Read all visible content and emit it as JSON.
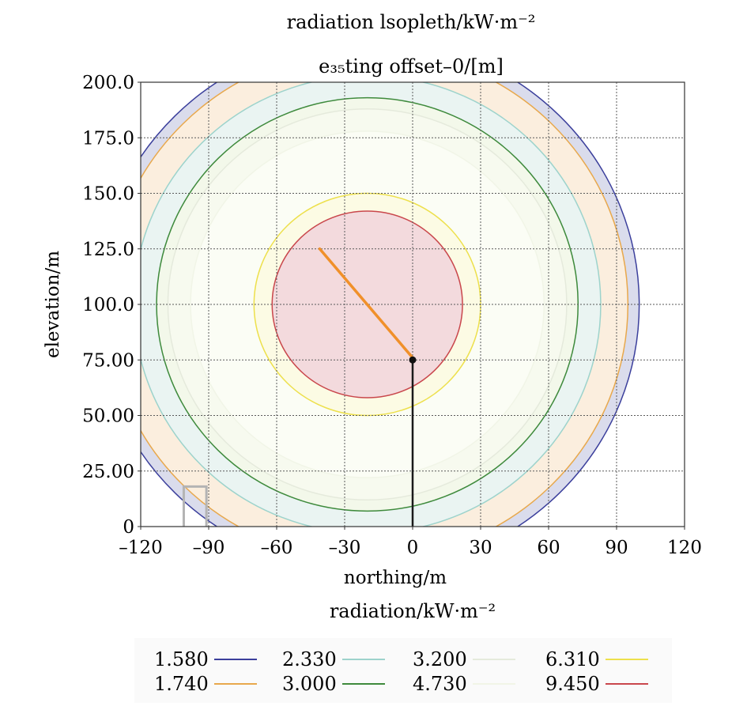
{
  "chart_data": {
    "type": "contour",
    "title": "radiation lsopleth/kW·m⁻²",
    "subtitle": "e₃₅ting offset–0/[m]",
    "xlabel": "northing/m",
    "ylabel": "elevation/m",
    "xlim": [
      -120,
      120
    ],
    "ylim": [
      0,
      200
    ],
    "xticks": [
      "–120",
      "–90",
      "–60",
      "–30",
      "0",
      "30",
      "60",
      "90",
      "120"
    ],
    "xtick_values": [
      -120,
      -90,
      -60,
      -30,
      0,
      30,
      60,
      90,
      120
    ],
    "yticks": [
      "0",
      "25.00",
      "50.00",
      "75.00",
      "100.0",
      "125.0",
      "150.0",
      "175.0",
      "200.0"
    ],
    "ytick_values": [
      0,
      25,
      50,
      75,
      100,
      125,
      150,
      175,
      200
    ],
    "grid": true,
    "legend_title": "radiation/kW·m⁻²",
    "legend_position": "bottom",
    "center": {
      "x": -20,
      "y": 100
    },
    "isopleths": [
      {
        "value": "1.580",
        "radius": 120,
        "color": "#3b3f9c",
        "fill": "#dadcec"
      },
      {
        "value": "1.740",
        "radius": 115,
        "color": "#e8a84c",
        "fill": "#fbeede"
      },
      {
        "value": "2.330",
        "radius": 103,
        "color": "#9dd3cc",
        "fill": "#eaf4f2"
      },
      {
        "value": "3.000",
        "radius": 93,
        "color": "#3e8a3c",
        "fill": "#f3f8ea"
      },
      {
        "value": "3.200",
        "radius": 88,
        "color": "#e5eadc",
        "fill": "#f7faef"
      },
      {
        "value": "4.730",
        "radius": 78,
        "color": "#f1f5e7",
        "fill": "#fbfdf5"
      },
      {
        "value": "6.310",
        "radius": 50,
        "color": "#ede04c",
        "fill": "#fcfbe4"
      },
      {
        "value": "9.450",
        "radius": 42,
        "color": "#c9474c",
        "fill": "#f3dadd"
      }
    ],
    "stack": {
      "x": 0,
      "y0": 0,
      "y1": 75,
      "color": "#1a1a1a"
    },
    "flame": {
      "x0": 0,
      "y0": 76,
      "x1": -41,
      "y1": 125,
      "color": "#f0902a"
    },
    "structure": {
      "x0": -101,
      "x1": -91,
      "y0": 0,
      "y1": 18,
      "color": "#b4b4b4"
    }
  }
}
